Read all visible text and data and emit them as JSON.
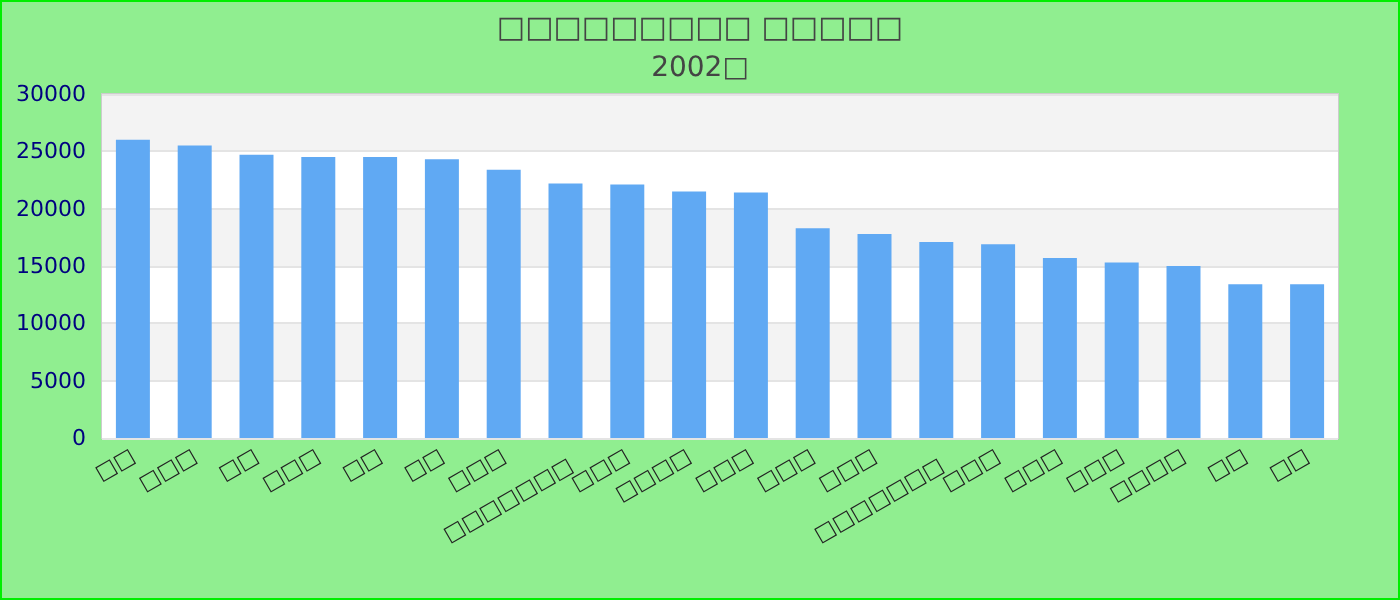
{
  "chart_data": {
    "type": "bar",
    "title": "□□□□□□□□□ □□□□□",
    "subtitle": "2002□",
    "categories": [
      "□□",
      "□□□",
      "□□",
      "□□□",
      "□□",
      "□□",
      "□□□",
      "□□□□□□□",
      "□□□",
      "□□□□",
      "□□□",
      "□□□",
      "□□□",
      "□□□□□□□",
      "□□□",
      "□□□",
      "□□□",
      "□□□□",
      "□□",
      "□□"
    ],
    "values": [
      26000,
      25500,
      24700,
      24500,
      24500,
      24300,
      23400,
      22200,
      22100,
      21500,
      21400,
      18300,
      17800,
      17100,
      16900,
      15700,
      15300,
      15000,
      13400,
      13400
    ],
    "color": "#60a9f3",
    "ylim": [
      0,
      30000
    ],
    "yticks": [
      0,
      5000,
      10000,
      15000,
      20000,
      25000,
      30000
    ],
    "grid": "y"
  }
}
